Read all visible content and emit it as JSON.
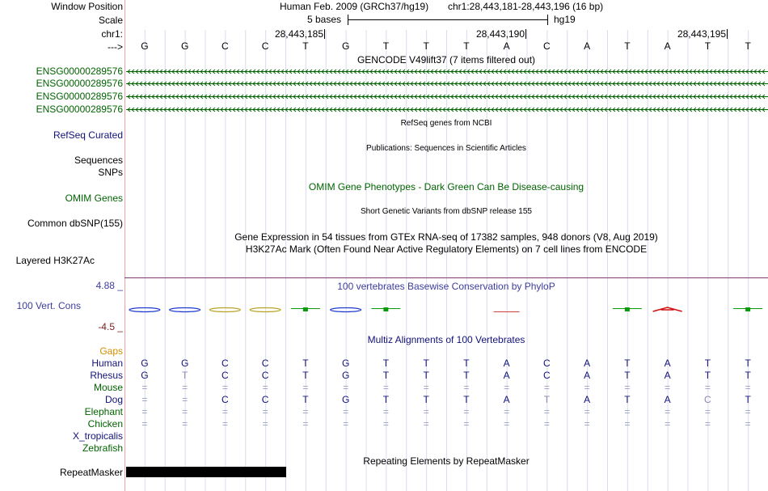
{
  "header": {
    "window_position_label": "Window Position",
    "scale_label": "Scale",
    "chrom_label": "chr1:",
    "arrow_label": "--->",
    "assembly_text": "Human Feb. 2009 (GRCh37/hg19)",
    "position_text": "chr1:28,443,181-28,443,196 (16 bp)",
    "scale_text": "5 bases",
    "db_text": "hg19",
    "coord_ticks": [
      "28,443,185",
      "28,443,190",
      "28,443,195"
    ]
  },
  "sequence": [
    "G",
    "G",
    "C",
    "C",
    "T",
    "G",
    "T",
    "T",
    "T",
    "A",
    "C",
    "A",
    "T",
    "A",
    "T",
    "T"
  ],
  "gencode": {
    "title": "GENCODE V49lift37 (7 items filtered out)",
    "items": [
      "ENSG00000289576",
      "ENSG00000289576",
      "ENSG00000289576",
      "ENSG00000289576"
    ]
  },
  "refseq": {
    "label": "RefSeq Curated",
    "title": "RefSeq genes from NCBI"
  },
  "publications": {
    "label": "Sequences",
    "title": "Publications: Sequences in Scientific Articles"
  },
  "snps": {
    "label": "SNPs"
  },
  "omim": {
    "label": "OMIM Genes",
    "title": "OMIM Gene Phenotypes - Dark Green Can Be Disease-causing"
  },
  "dbsnp": {
    "label": "Common dbSNP(155)",
    "title": "Short Genetic Variants from dbSNP release 155"
  },
  "gtex": {
    "title": "Gene Expression in 54 tissues from GTEx RNA-seq of 17382 samples, 948 donors (V8, Aug 2019)"
  },
  "h3k27ac": {
    "label": "Layered H3K27Ac",
    "title": "H3K27Ac Mark (Often Found Near Active Regulatory Elements) on 7 cell lines from ENCODE"
  },
  "conservation": {
    "label": "100 Vert. Cons",
    "max_label": "4.88 _",
    "min_label": "-4.5 _",
    "title": "100 vertebrates Basewise Conservation by PhyloP"
  },
  "multiz": {
    "title": "Multiz Alignments of 100 Vertebrates",
    "gaps_label": "Gaps",
    "species": [
      {
        "name": "Human",
        "seq": [
          "G",
          "G",
          "C",
          "C",
          "T",
          "G",
          "T",
          "T",
          "T",
          "A",
          "C",
          "A",
          "T",
          "A",
          "T",
          "T"
        ]
      },
      {
        "name": "Rhesus",
        "seq": [
          "G",
          "T",
          "C",
          "C",
          "T",
          "G",
          "T",
          "T",
          "T",
          "A",
          "C",
          "A",
          "T",
          "A",
          "T",
          "T"
        ]
      },
      {
        "name": "Mouse",
        "seq": [
          "=",
          "=",
          "=",
          "=",
          "=",
          "=",
          "=",
          "=",
          "=",
          "=",
          "=",
          "=",
          "=",
          "=",
          "=",
          "="
        ]
      },
      {
        "name": "Dog",
        "seq": [
          "=",
          "=",
          "C",
          "C",
          "T",
          "G",
          "T",
          "T",
          "T",
          "A",
          "T",
          "A",
          "T",
          "A",
          "C",
          "T"
        ]
      },
      {
        "name": "Elephant",
        "seq": [
          "=",
          "=",
          "=",
          "=",
          "=",
          "=",
          "=",
          "=",
          "=",
          "=",
          "=",
          "=",
          "=",
          "=",
          "=",
          "="
        ]
      },
      {
        "name": "Chicken",
        "seq": [
          "=",
          "=",
          "=",
          "=",
          "=",
          "=",
          "=",
          "=",
          "=",
          "=",
          "=",
          "=",
          "=",
          "=",
          "=",
          "="
        ]
      },
      {
        "name": "X_tropicalis",
        "seq": []
      },
      {
        "name": "Zebrafish",
        "seq": []
      }
    ]
  },
  "repeatmasker": {
    "label": "RepeatMasker",
    "title": "Repeating Elements by RepeatMasker"
  },
  "colors": {
    "gene_green": "#006400",
    "refseq_blue": "#12127a",
    "conservation_blue": "#3c3c9e",
    "gaps_orange": "#d09000",
    "grid": "#dcdcec",
    "separator": "#f0a0a0",
    "repeat_black": "#000000"
  }
}
